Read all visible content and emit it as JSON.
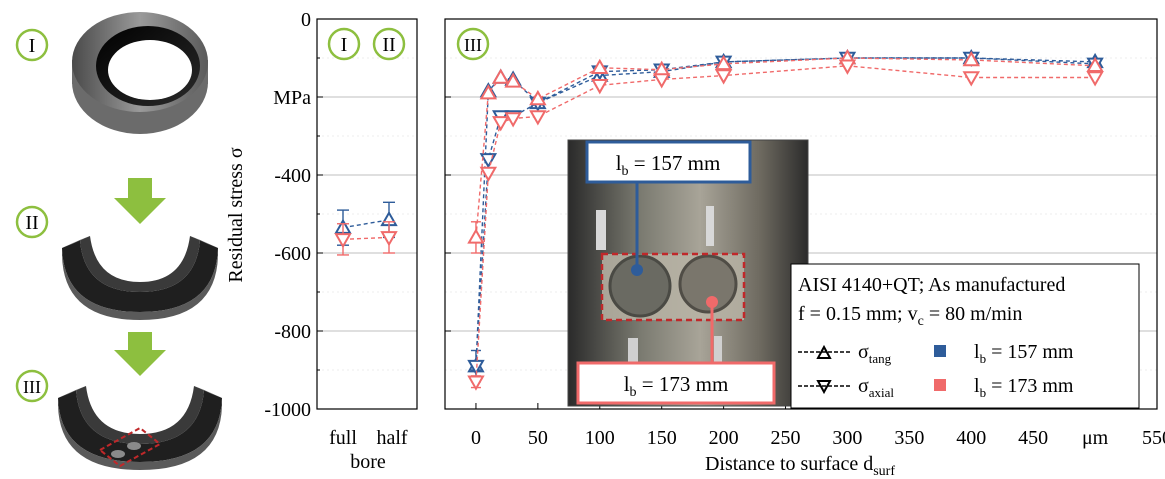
{
  "colors": {
    "blue": "#2e5c9a",
    "red": "#f06a6a",
    "green": "#8dbf3f",
    "grid": "#bfbfbf",
    "dark": "#1a1a1a"
  },
  "steps": {
    "I": "I",
    "II": "II",
    "III": "III"
  },
  "left_panel": {
    "ylabel": "Residual stress σ",
    "unit": "MPa",
    "x_labels": [
      "full",
      "half"
    ],
    "x_group_label": "bore",
    "labels": [
      "I",
      "II"
    ]
  },
  "right_panel": {
    "label": "III",
    "xlabel": "Distance to surface d",
    "xlabel_sub": "surf",
    "x_unit": "μm"
  },
  "legend": {
    "line1": "AISI 4140+QT; As manufactured",
    "line2": "f = 0.15 mm; v",
    "line2_sub": "c",
    "line2_tail": " = 80 m/min",
    "tang": "σ",
    "tang_sub": "tang",
    "axial": "σ",
    "axial_sub": "axial",
    "lb1": "l",
    "lb1_sub": "b",
    "lb1_tail": " = 157 mm",
    "lb2": "l",
    "lb2_sub": "b",
    "lb2_tail": " = 173 mm"
  },
  "photo": {
    "label_top": "l",
    "label_top_sub": "b",
    "label_top_tail": " = 157 mm",
    "label_bottom": "l",
    "label_bottom_sub": "b",
    "label_bottom_tail": " = 173 mm"
  },
  "chart_data": [
    {
      "type": "scatter",
      "panel": "bore",
      "categories": [
        "full",
        "half"
      ],
      "ylim": [
        -1000,
        0
      ],
      "yticks": [
        0,
        -200,
        -400,
        -600,
        -800,
        -1000
      ],
      "ytick_labels": [
        "0",
        "MPa",
        "-400",
        "-600",
        "-800",
        "-1000"
      ],
      "grid": true,
      "series": [
        {
          "name": "σtang, lb = 157 mm",
          "color": "blue",
          "marker": "up",
          "values": [
            -535,
            -515
          ],
          "errors": [
            45,
            45
          ]
        },
        {
          "name": "σaxial, lb = 173 mm",
          "color": "red",
          "marker": "down",
          "values": [
            -565,
            -560
          ],
          "errors": [
            40,
            40
          ]
        }
      ]
    },
    {
      "type": "line",
      "panel": "surface",
      "xlim": [
        -25,
        550
      ],
      "ylim": [
        -1000,
        0
      ],
      "xticks": [
        0,
        50,
        100,
        150,
        200,
        250,
        300,
        350,
        400,
        450,
        500,
        550
      ],
      "xtick_labels": [
        "0",
        "50",
        "100",
        "150",
        "200",
        "250",
        "300",
        "350",
        "400",
        "450",
        "μm",
        "550"
      ],
      "grid": true,
      "series": [
        {
          "name": "σtang, lb = 157 mm",
          "color": "blue",
          "marker": "up",
          "x": [
            0,
            10,
            20,
            30,
            50,
            100,
            150,
            200,
            300,
            400,
            500
          ],
          "y": [
            -890,
            -185,
            -150,
            -155,
            -215,
            -145,
            -135,
            -110,
            -100,
            -100,
            -110
          ]
        },
        {
          "name": "σaxial, lb = 157 mm",
          "color": "blue",
          "marker": "down",
          "x": [
            0,
            10,
            20,
            30,
            50,
            100,
            150,
            200,
            300,
            400,
            500
          ],
          "y": [
            -890,
            -360,
            -250,
            -250,
            -215,
            -135,
            -130,
            -110,
            -100,
            -100,
            -115
          ]
        },
        {
          "name": "σtang, lb = 173 mm",
          "color": "red",
          "marker": "up",
          "x": [
            0,
            10,
            20,
            30,
            50,
            100,
            150,
            200,
            300,
            400,
            500
          ],
          "y": [
            -560,
            -190,
            -150,
            -160,
            -205,
            -125,
            -130,
            -115,
            -100,
            -105,
            -120
          ]
        },
        {
          "name": "σaxial, lb = 173 mm",
          "color": "red",
          "marker": "down",
          "x": [
            0,
            10,
            20,
            30,
            50,
            100,
            150,
            200,
            300,
            400,
            500
          ],
          "y": [
            -930,
            -395,
            -265,
            -255,
            -250,
            -170,
            -155,
            -145,
            -120,
            -150,
            -150
          ]
        }
      ],
      "first_point_errors": {
        "blue_up": 40,
        "blue_down": 10,
        "red_up": 40,
        "red_down": 15
      }
    }
  ]
}
